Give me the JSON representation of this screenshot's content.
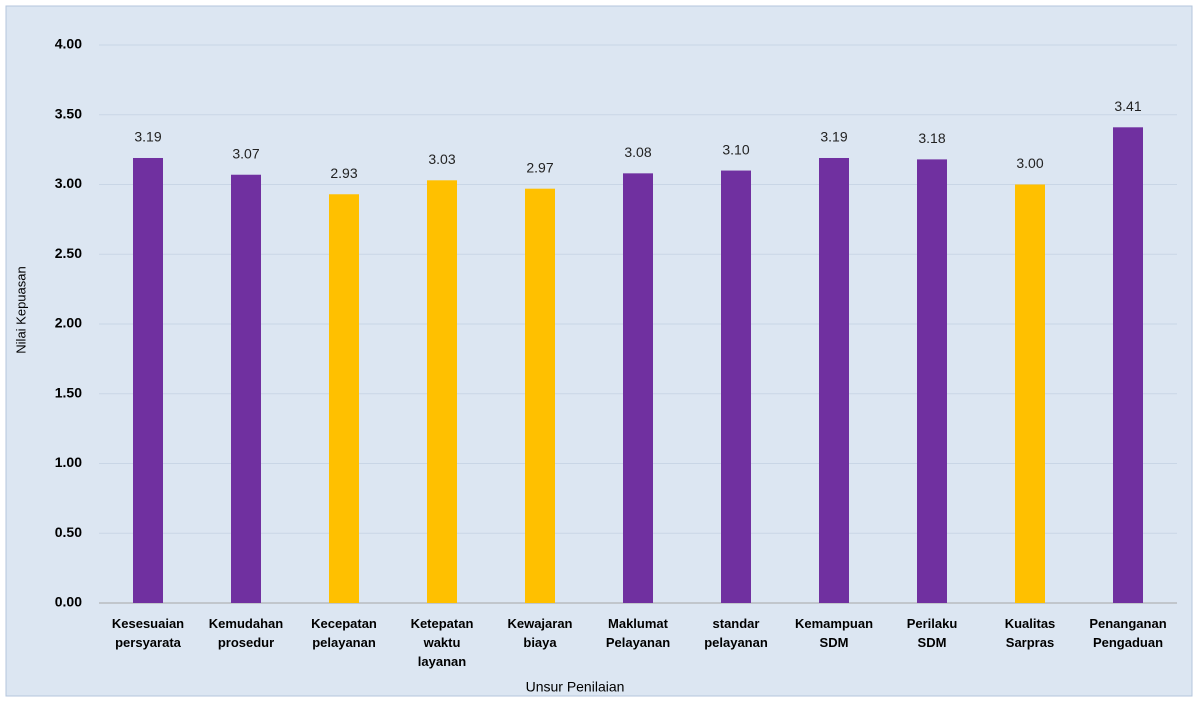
{
  "chart_data": {
    "type": "bar",
    "x_label": "Unsur Penilaian",
    "y_label": "Nilai Kepuasan",
    "categories": [
      "Kesesuaian\npersyarata",
      "Kemudahan\nprosedur",
      "Kecepatan\npelayanan",
      "Ketepatan\nwaktu\nlayanan",
      "Kewajaran\nbiaya",
      "Maklumat\nPelayanan",
      "standar\npelayanan",
      "Kemampuan\nSDM",
      "Perilaku\nSDM",
      "Kualitas\nSarpras",
      "Penanganan\nPengaduan"
    ],
    "values": [
      3.19,
      3.07,
      2.93,
      3.03,
      2.97,
      3.08,
      3.1,
      3.19,
      3.18,
      3,
      3.41
    ],
    "value_labels": [
      "3.19",
      "3.07",
      "2.93",
      "3.03",
      "2.97",
      "3.08",
      "3.10",
      "3.19",
      "3.18",
      "3.00",
      "3.41"
    ],
    "colors": [
      "#7030a0",
      "#7030a0",
      "#ffc000",
      "#ffc000",
      "#ffc000",
      "#7030a0",
      "#7030a0",
      "#7030a0",
      "#7030a0",
      "#ffc000",
      "#7030a0"
    ],
    "ylim": [
      0,
      4
    ],
    "yticks": [
      {
        "value": 0,
        "label": "0.00"
      },
      {
        "value": 0.5,
        "label": "0.50"
      },
      {
        "value": 1,
        "label": "1.00"
      },
      {
        "value": 1.5,
        "label": "1.50"
      },
      {
        "value": 2,
        "label": "2.00"
      },
      {
        "value": 2.5,
        "label": "2.50"
      },
      {
        "value": 3,
        "label": "3.00"
      },
      {
        "value": 3.5,
        "label": "3.50"
      },
      {
        "value": 4,
        "label": "4.00"
      }
    ],
    "grid": true
  }
}
